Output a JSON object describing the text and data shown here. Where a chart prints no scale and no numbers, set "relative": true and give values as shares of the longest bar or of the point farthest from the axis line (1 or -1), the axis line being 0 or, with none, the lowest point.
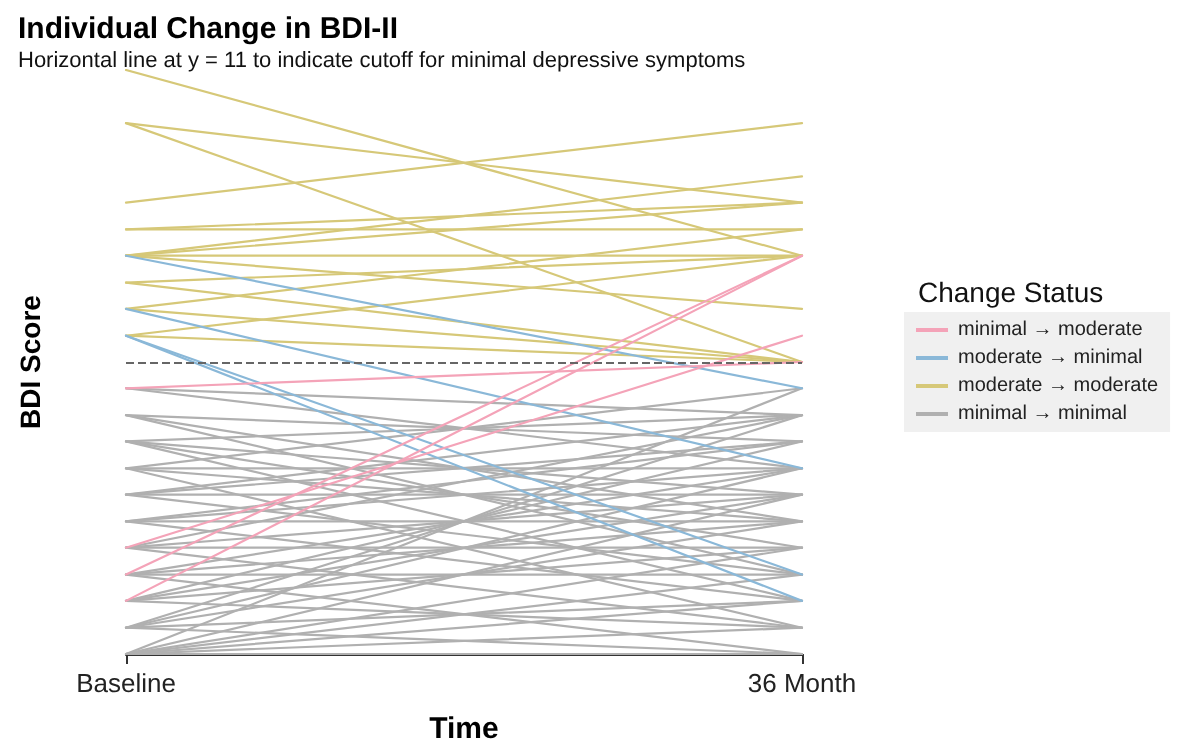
{
  "chart_data": {
    "type": "line",
    "title": "Individual Change in BDI-II",
    "subtitle": "Horizontal line at y = 11 to indicate cutoff for minimal depressive symptoms",
    "xlabel": "Time",
    "ylabel": "BDI Score",
    "legend_title": "Change Status",
    "legend": "right",
    "relative": true,
    "categories": [
      "Baseline",
      "36 Month"
    ],
    "ref_lines": [
      {
        "axis": "y",
        "value": 0.5,
        "color": "#666666",
        "line_style": "dashed"
      }
    ],
    "series": [
      {
        "name": "minimal → moderate",
        "color": "#f4a3b8",
        "values": [
          0.455,
          0.5
        ]
      },
      {
        "color": "#f4a3b8",
        "values": [
          0.136,
          0.682
        ]
      },
      {
        "color": "#f4a3b8",
        "values": [
          0.091,
          0.682
        ]
      },
      {
        "color": "#f4a3b8",
        "values": [
          0.182,
          0.545
        ]
      },
      {
        "name": "moderate → minimal",
        "color": "#8ab8d8",
        "values": [
          0.682,
          0.455
        ]
      },
      {
        "color": "#8ab8d8",
        "values": [
          0.591,
          0.318
        ]
      },
      {
        "color": "#8ab8d8",
        "values": [
          0.545,
          0.136
        ]
      },
      {
        "color": "#8ab8d8",
        "values": [
          0.545,
          0.091
        ]
      },
      {
        "name": "moderate → moderate",
        "color": "#d6c878",
        "values": [
          1,
          0.682
        ]
      },
      {
        "color": "#d6c878",
        "values": [
          0.909,
          0.773
        ]
      },
      {
        "color": "#d6c878",
        "values": [
          0.909,
          0.5
        ]
      },
      {
        "color": "#d6c878",
        "values": [
          0.773,
          0.909
        ]
      },
      {
        "color": "#d6c878",
        "values": [
          0.727,
          0.727
        ]
      },
      {
        "color": "#d6c878",
        "values": [
          0.727,
          0.773
        ]
      },
      {
        "color": "#d6c878",
        "values": [
          0.682,
          0.818
        ]
      },
      {
        "color": "#d6c878",
        "values": [
          0.682,
          0.682
        ]
      },
      {
        "color": "#d6c878",
        "values": [
          0.682,
          0.773
        ]
      },
      {
        "color": "#d6c878",
        "values": [
          0.682,
          0.591
        ]
      },
      {
        "color": "#d6c878",
        "values": [
          0.636,
          0.5
        ]
      },
      {
        "color": "#d6c878",
        "values": [
          0.636,
          0.682
        ]
      },
      {
        "color": "#d6c878",
        "values": [
          0.591,
          0.727
        ]
      },
      {
        "color": "#d6c878",
        "values": [
          0.545,
          0.5
        ]
      },
      {
        "color": "#d6c878",
        "values": [
          0.545,
          0.682
        ]
      },
      {
        "color": "#d6c878",
        "values": [
          0.591,
          0.5
        ]
      },
      {
        "name": "minimal → minimal",
        "color": "#b0b0b0",
        "values": [
          0.455,
          0.318
        ]
      },
      {
        "color": "#b0b0b0",
        "values": [
          0.455,
          0.409
        ]
      },
      {
        "color": "#b0b0b0",
        "values": [
          0.409,
          0.227
        ]
      },
      {
        "color": "#b0b0b0",
        "values": [
          0.409,
          0.364
        ]
      },
      {
        "color": "#b0b0b0",
        "values": [
          0.409,
          0.136
        ]
      },
      {
        "color": "#b0b0b0",
        "values": [
          0.364,
          0.409
        ]
      },
      {
        "color": "#b0b0b0",
        "values": [
          0.364,
          0.273
        ]
      },
      {
        "color": "#b0b0b0",
        "values": [
          0.364,
          0.182
        ]
      },
      {
        "color": "#b0b0b0",
        "values": [
          0.364,
          0.091
        ]
      },
      {
        "color": "#b0b0b0",
        "values": [
          0.318,
          0.455
        ]
      },
      {
        "color": "#b0b0b0",
        "values": [
          0.318,
          0.318
        ]
      },
      {
        "color": "#b0b0b0",
        "values": [
          0.318,
          0.227
        ]
      },
      {
        "color": "#b0b0b0",
        "values": [
          0.318,
          0.045
        ]
      },
      {
        "color": "#b0b0b0",
        "values": [
          0.273,
          0.364
        ]
      },
      {
        "color": "#b0b0b0",
        "values": [
          0.273,
          0.273
        ]
      },
      {
        "color": "#b0b0b0",
        "values": [
          0.273,
          0.136
        ]
      },
      {
        "color": "#b0b0b0",
        "values": [
          0.273,
          0.409
        ]
      },
      {
        "color": "#b0b0b0",
        "values": [
          0.227,
          0.318
        ]
      },
      {
        "color": "#b0b0b0",
        "values": [
          0.227,
          0.227
        ]
      },
      {
        "color": "#b0b0b0",
        "values": [
          0.227,
          0.091
        ]
      },
      {
        "color": "#b0b0b0",
        "values": [
          0.227,
          0.364
        ]
      },
      {
        "color": "#b0b0b0",
        "values": [
          0.182,
          0.273
        ]
      },
      {
        "color": "#b0b0b0",
        "values": [
          0.182,
          0.182
        ]
      },
      {
        "color": "#b0b0b0",
        "values": [
          0.182,
          0.045
        ]
      },
      {
        "color": "#b0b0b0",
        "values": [
          0.182,
          0.409
        ]
      },
      {
        "color": "#b0b0b0",
        "values": [
          0.136,
          0.318
        ]
      },
      {
        "color": "#b0b0b0",
        "values": [
          0.136,
          0.136
        ]
      },
      {
        "color": "#b0b0b0",
        "values": [
          0.136,
          0.227
        ]
      },
      {
        "color": "#b0b0b0",
        "values": [
          0.136,
          0
        ]
      },
      {
        "color": "#b0b0b0",
        "values": [
          0.091,
          0.273
        ]
      },
      {
        "color": "#b0b0b0",
        "values": [
          0.091,
          0.182
        ]
      },
      {
        "color": "#b0b0b0",
        "values": [
          0.091,
          0.364
        ]
      },
      {
        "color": "#b0b0b0",
        "values": [
          0.091,
          0.045
        ]
      },
      {
        "color": "#b0b0b0",
        "values": [
          0.045,
          0.227
        ]
      },
      {
        "color": "#b0b0b0",
        "values": [
          0.045,
          0.091
        ]
      },
      {
        "color": "#b0b0b0",
        "values": [
          0.045,
          0.318
        ]
      },
      {
        "color": "#b0b0b0",
        "values": [
          0.045,
          0
        ]
      },
      {
        "color": "#b0b0b0",
        "values": [
          0,
          0.136
        ]
      },
      {
        "color": "#b0b0b0",
        "values": [
          0,
          0.045
        ]
      },
      {
        "color": "#b0b0b0",
        "values": [
          0,
          0.273
        ]
      },
      {
        "color": "#b0b0b0",
        "values": [
          0,
          0.182
        ]
      },
      {
        "color": "#b0b0b0",
        "values": [
          0,
          0.091
        ]
      },
      {
        "color": "#b0b0b0",
        "values": [
          0,
          0
        ]
      },
      {
        "color": "#b0b0b0",
        "values": [
          0,
          0.455
        ]
      },
      {
        "color": "#b0b0b0",
        "values": [
          0.045,
          0.409
        ]
      }
    ]
  }
}
